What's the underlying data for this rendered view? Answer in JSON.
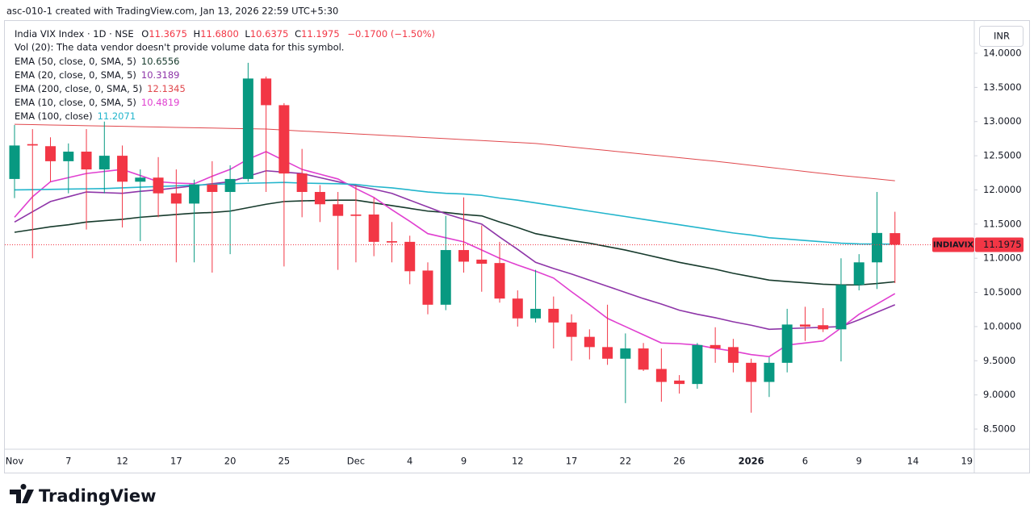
{
  "header": {
    "watermark": "asc-010-1 created with TradingView.com, Jan 13, 2026 22:59 UTC+5:30",
    "currency": "INR",
    "logo_text": "TradingView"
  },
  "chart_data": {
    "type": "candlestick",
    "title": "India VIX Index · 1D · NSE",
    "ohlc_labels": [
      "O",
      "H",
      "L",
      "C"
    ],
    "last_values": [
      "11.3675",
      "11.6800",
      "10.6375",
      "11.1975"
    ],
    "change": "−0.1700 (−1.50%)",
    "vol_note": "Vol (20): The data vendor doesn't provide volume data for this symbol.",
    "symbol_tag": "INDIAVIX",
    "up_color": "#089981",
    "down_color": "#f23645",
    "categories": [
      "Nov",
      null,
      null,
      "7",
      null,
      null,
      "12",
      null,
      null,
      "17",
      null,
      null,
      "20",
      null,
      null,
      "25",
      null,
      null,
      null,
      "Dec",
      null,
      null,
      "4",
      null,
      null,
      "9",
      null,
      null,
      "12",
      null,
      null,
      "17",
      null,
      null,
      "22",
      null,
      null,
      "26",
      null,
      null,
      null,
      "2026",
      null,
      null,
      "6",
      null,
      null,
      "9",
      null,
      null,
      "14",
      null,
      null,
      "19"
    ],
    "open": [
      12.16,
      12.67,
      12.64,
      12.42,
      12.56,
      12.3,
      12.5,
      12.12,
      12.18,
      11.95,
      11.8,
      12.08,
      11.97,
      12.16,
      13.63,
      13.24,
      12.24,
      11.97,
      11.79,
      11.64,
      11.64,
      11.25,
      11.24,
      10.82,
      10.32,
      11.12,
      10.98,
      10.93,
      10.41,
      10.12,
      10.26,
      10.06,
      9.85,
      9.7,
      9.53,
      9.68,
      9.38,
      9.21,
      9.16,
      9.73,
      9.7,
      9.47,
      9.19,
      9.47,
      10.03,
      10.02,
      9.96,
      10.61,
      10.94,
      11.3675,
      null,
      null,
      null,
      null
    ],
    "high": [
      12.95,
      12.89,
      12.77,
      12.68,
      12.89,
      13.0,
      12.65,
      12.3,
      12.48,
      12.3,
      12.15,
      12.42,
      12.36,
      13.86,
      13.66,
      13.27,
      12.6,
      12.07,
      11.97,
      12.07,
      11.89,
      11.53,
      11.33,
      10.94,
      11.62,
      11.89,
      11.48,
      11.24,
      10.53,
      10.83,
      10.44,
      10.18,
      9.96,
      10.32,
      9.9,
      9.76,
      9.68,
      9.29,
      9.76,
      9.99,
      9.82,
      9.53,
      9.55,
      10.26,
      10.29,
      10.27,
      11.0,
      11.06,
      11.97,
      11.68,
      null,
      null,
      null,
      null
    ],
    "low": [
      11.88,
      11.0,
      12.12,
      11.95,
      11.42,
      11.95,
      11.45,
      11.25,
      11.6,
      10.94,
      10.94,
      10.79,
      11.06,
      12.12,
      11.97,
      10.88,
      11.6,
      11.53,
      10.83,
      10.94,
      11.03,
      10.94,
      10.62,
      10.18,
      10.24,
      10.79,
      10.51,
      10.35,
      10.0,
      10.06,
      9.68,
      9.5,
      9.52,
      9.44,
      8.88,
      9.35,
      8.9,
      9.02,
      9.09,
      9.47,
      9.33,
      8.74,
      8.97,
      9.33,
      9.79,
      9.92,
      9.49,
      10.53,
      10.55,
      10.6375,
      null,
      null,
      null,
      null
    ],
    "close": [
      12.65,
      12.65,
      12.42,
      12.56,
      12.3,
      12.5,
      12.12,
      12.18,
      11.95,
      11.8,
      12.08,
      11.97,
      12.16,
      13.63,
      13.24,
      12.24,
      11.97,
      11.79,
      11.62,
      11.62,
      11.24,
      11.23,
      10.81,
      10.32,
      11.12,
      10.95,
      10.92,
      10.41,
      10.12,
      10.26,
      10.06,
      9.85,
      9.7,
      9.53,
      9.68,
      9.37,
      9.19,
      9.16,
      9.73,
      9.68,
      9.47,
      9.19,
      9.47,
      10.03,
      10.0,
      9.96,
      10.61,
      10.94,
      11.37,
      11.1975,
      null,
      null,
      null,
      null
    ],
    "series": [
      {
        "name": "EMA (50, close, 0, SMA, 5)",
        "color": "#163a2c",
        "values": [
          11.38,
          11.42,
          11.46,
          11.49,
          11.53,
          11.55,
          11.57,
          11.6,
          11.62,
          11.64,
          11.66,
          11.67,
          11.69,
          11.74,
          11.79,
          11.83,
          11.84,
          11.845,
          11.85,
          11.85,
          11.81,
          11.77,
          11.73,
          11.69,
          11.67,
          11.64,
          11.62,
          11.53,
          11.45,
          11.36,
          11.31,
          11.26,
          11.22,
          11.17,
          11.12,
          11.06,
          11.0,
          10.94,
          10.89,
          10.84,
          10.78,
          10.73,
          10.68,
          10.66,
          10.64,
          10.62,
          10.61,
          10.61,
          10.63,
          10.6556,
          null,
          null,
          null,
          null
        ]
      },
      {
        "name": "EMA (20, close, 0, SMA, 5)",
        "color": "#8e35a8",
        "values": [
          11.53,
          11.68,
          11.83,
          11.9,
          11.97,
          11.96,
          11.95,
          11.98,
          12.0,
          12.03,
          12.06,
          12.09,
          12.12,
          12.2,
          12.28,
          12.26,
          12.24,
          12.18,
          12.12,
          12.06,
          12.01,
          11.95,
          11.85,
          11.75,
          11.65,
          11.57,
          11.5,
          11.31,
          11.13,
          10.94,
          10.85,
          10.77,
          10.68,
          10.59,
          10.5,
          10.41,
          10.33,
          10.24,
          10.18,
          10.13,
          10.07,
          10.02,
          9.96,
          9.97,
          9.98,
          9.99,
          10.0,
          10.1,
          10.21,
          10.3189,
          null,
          null,
          null,
          null
        ]
      },
      {
        "name": "EMA (200, close, 0, SMA, 5)",
        "color": "#e0474c",
        "values": [
          12.96,
          12.955,
          12.95,
          12.945,
          12.94,
          12.935,
          12.93,
          12.925,
          12.92,
          12.915,
          12.91,
          12.905,
          12.9,
          12.895,
          12.89,
          12.876,
          12.862,
          12.848,
          12.834,
          12.82,
          12.806,
          12.792,
          12.778,
          12.764,
          12.75,
          12.736,
          12.722,
          12.708,
          12.694,
          12.68,
          12.654,
          12.628,
          12.602,
          12.576,
          12.55,
          12.524,
          12.498,
          12.472,
          12.446,
          12.42,
          12.39,
          12.36,
          12.33,
          12.3,
          12.27,
          12.24,
          12.21,
          12.185,
          12.16,
          12.1345,
          null,
          null,
          null,
          null
        ]
      },
      {
        "name": "EMA (10, close, 0, SMA, 5)",
        "color": "#e03fd0",
        "values": [
          11.6,
          11.9,
          12.12,
          12.18,
          12.24,
          12.27,
          12.3,
          12.21,
          12.12,
          12.1,
          12.09,
          12.2,
          12.3,
          12.45,
          12.56,
          12.43,
          12.3,
          12.23,
          12.16,
          12.02,
          11.89,
          11.71,
          11.54,
          11.36,
          11.3,
          11.24,
          11.12,
          11.0,
          10.9,
          10.81,
          10.71,
          10.51,
          10.32,
          10.12,
          10.0,
          9.88,
          9.76,
          9.75,
          9.73,
          9.68,
          9.64,
          9.59,
          9.56,
          9.73,
          9.76,
          9.79,
          9.98,
          10.18,
          10.33,
          10.4819,
          null,
          null,
          null,
          null
        ]
      },
      {
        "name": "EMA (100, close)",
        "color": "#22b5cc",
        "values": [
          12.0,
          12.004,
          12.008,
          12.012,
          12.016,
          12.02,
          12.03,
          12.04,
          12.05,
          12.06,
          12.07,
          12.08,
          12.09,
          12.097,
          12.103,
          12.11,
          12.1,
          12.095,
          12.09,
          12.08,
          12.05,
          12.03,
          12.0,
          11.97,
          11.95,
          11.94,
          11.92,
          11.88,
          11.85,
          11.81,
          11.77,
          11.73,
          11.69,
          11.65,
          11.61,
          11.57,
          11.53,
          11.49,
          11.45,
          11.41,
          11.37,
          11.34,
          11.3,
          11.28,
          11.26,
          11.24,
          11.22,
          11.21,
          11.207,
          11.2071,
          null,
          null,
          null,
          null
        ]
      }
    ],
    "ylim": [
      8.229,
      14.366
    ],
    "yticks": [
      {
        "value": 14,
        "label": "14.0000"
      },
      {
        "value": 13.5,
        "label": "13.5000"
      },
      {
        "value": 13,
        "label": "13.0000"
      },
      {
        "value": 12.5,
        "label": "12.5000"
      },
      {
        "value": 12,
        "label": "12.0000"
      },
      {
        "value": 11.5,
        "label": "11.5000"
      },
      {
        "value": 11,
        "label": "11.0000"
      },
      {
        "value": 10.5,
        "label": "10.5000"
      },
      {
        "value": 10,
        "label": "10.0000"
      },
      {
        "value": 9.5,
        "label": "9.5000"
      },
      {
        "value": 9,
        "label": "9.0000"
      },
      {
        "value": 8.5,
        "label": "8.5000"
      }
    ],
    "grid": false
  }
}
